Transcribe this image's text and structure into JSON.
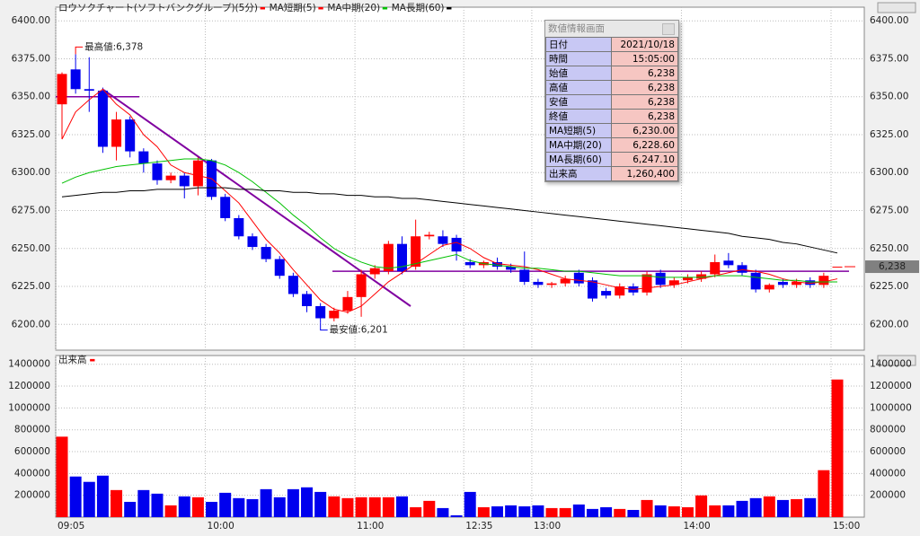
{
  "chart_data": [
    {
      "type": "candlestick",
      "title": "ロウソクチャート(ソフトバンクグループ)(5分)",
      "up_color": "#ff0000",
      "down_color": "#0000ee",
      "open": [
        6345,
        6368,
        6355,
        6354,
        6317,
        6335,
        6314,
        6306,
        6295,
        6298,
        6291,
        6308,
        6284,
        6270,
        6258,
        6251,
        6243,
        6232,
        6220,
        6212,
        6204,
        6209,
        6218,
        6233,
        6235,
        6253,
        6238,
        6258,
        6258,
        6257,
        6241,
        6239,
        6241,
        6238,
        6236,
        6228,
        6226,
        6227,
        6234,
        6229,
        6222,
        6219,
        6225,
        6221,
        6234,
        6226,
        6229,
        6230,
        6233,
        6242,
        6239,
        6234,
        6223,
        6228,
        6226,
        6229,
        6226,
        6238
      ],
      "high": [
        6366,
        6378,
        6376,
        6356,
        6340,
        6337,
        6316,
        6308,
        6300,
        6300,
        6310,
        6309,
        6286,
        6272,
        6260,
        6253,
        6245,
        6234,
        6222,
        6214,
        6211,
        6222,
        6236,
        6239,
        6255,
        6258,
        6269,
        6261,
        6262,
        6259,
        6243,
        6242,
        6244,
        6240,
        6248,
        6230,
        6228,
        6232,
        6236,
        6231,
        6224,
        6227,
        6227,
        6235,
        6236,
        6231,
        6233,
        6235,
        6246,
        6247,
        6241,
        6236,
        6227,
        6230,
        6230,
        6231,
        6234,
        6238
      ],
      "low": [
        6322,
        6352,
        6340,
        6313,
        6308,
        6310,
        6300,
        6292,
        6293,
        6283,
        6285,
        6282,
        6268,
        6256,
        6249,
        6241,
        6230,
        6218,
        6208,
        6201,
        6202,
        6207,
        6205,
        6230,
        6233,
        6233,
        6236,
        6256,
        6251,
        6242,
        6237,
        6237,
        6236,
        6234,
        6226,
        6224,
        6224,
        6225,
        6225,
        6215,
        6217,
        6217,
        6219,
        6219,
        6224,
        6224,
        6227,
        6228,
        6231,
        6237,
        6232,
        6221,
        6221,
        6224,
        6224,
        6224,
        6224,
        6238
      ],
      "close": [
        6365,
        6355,
        6354,
        6317,
        6335,
        6314,
        6306,
        6295,
        6298,
        6291,
        6308,
        6284,
        6270,
        6258,
        6251,
        6243,
        6232,
        6220,
        6212,
        6204,
        6209,
        6218,
        6233,
        6237,
        6253,
        6235,
        6258,
        6259,
        6253,
        6248,
        6239,
        6241,
        6238,
        6236,
        6228,
        6226,
        6227,
        6230,
        6227,
        6217,
        6219,
        6225,
        6221,
        6233,
        6226,
        6229,
        6231,
        6233,
        6241,
        6239,
        6234,
        6223,
        6226,
        6226,
        6228,
        6226,
        6232,
        6238
      ],
      "series": [
        {
          "name": "MA短期(5)",
          "color": "#ff0000",
          "values": [
            6322,
            6340,
            6348,
            6355,
            6345,
            6338,
            6325,
            6317,
            6305,
            6300,
            6298,
            6296,
            6288,
            6280,
            6268,
            6256,
            6247,
            6236,
            6226,
            6216,
            6210,
            6208,
            6212,
            6220,
            6228,
            6234,
            6240,
            6246,
            6252,
            6254,
            6250,
            6244,
            6240,
            6239,
            6238,
            6236,
            6233,
            6230,
            6229,
            6228,
            6226,
            6224,
            6223,
            6224,
            6225,
            6226,
            6228,
            6230,
            6232,
            6234,
            6236,
            6235,
            6233,
            6230,
            6228,
            6227,
            6228,
            6230
          ]
        },
        {
          "name": "MA中期(20)",
          "color": "#00c000",
          "values": [
            6293,
            6297,
            6300,
            6302,
            6304,
            6305,
            6306,
            6307,
            6308,
            6309,
            6309,
            6308,
            6305,
            6300,
            6294,
            6287,
            6280,
            6272,
            6265,
            6257,
            6250,
            6245,
            6241,
            6238,
            6237,
            6238,
            6240,
            6242,
            6244,
            6246,
            6242,
            6240,
            6239,
            6238,
            6237,
            6237,
            6236,
            6235,
            6235,
            6234,
            6233,
            6232,
            6232,
            6232,
            6231,
            6231,
            6231,
            6231,
            6232,
            6232,
            6232,
            6231,
            6230,
            6229,
            6229,
            6228,
            6228,
            6228
          ]
        },
        {
          "name": "MA長期(60)",
          "color": "#000000",
          "values": [
            6284,
            6285,
            6286,
            6287,
            6287,
            6288,
            6288,
            6289,
            6289,
            6289,
            6290,
            6290,
            6290,
            6289,
            6289,
            6288,
            6288,
            6287,
            6287,
            6286,
            6286,
            6285,
            6285,
            6284,
            6284,
            6283,
            6283,
            6282,
            6281,
            6280,
            6279,
            6278,
            6277,
            6276,
            6275,
            6274,
            6273,
            6272,
            6271,
            6270,
            6269,
            6268,
            6267,
            6266,
            6265,
            6264,
            6263,
            6262,
            6261,
            6260,
            6258,
            6257,
            6256,
            6254,
            6253,
            6251,
            6249,
            6247
          ]
        }
      ],
      "annotations": [
        {
          "text": "最高値:6,378",
          "value": 6378,
          "at": "high"
        },
        {
          "text": "最安値:6,201",
          "value": 6201,
          "at": "low"
        }
      ],
      "last_label": {
        "value": 6238,
        "label": "6,238"
      },
      "ylim": [
        6183,
        6409
      ],
      "yticks": [
        {
          "value": 6200,
          "label": "6200.00"
        },
        {
          "value": 6225,
          "label": "6225.00"
        },
        {
          "value": 6250,
          "label": "6250.00"
        },
        {
          "value": 6275,
          "label": "6275.00"
        },
        {
          "value": 6300,
          "label": "6300.00"
        },
        {
          "value": 6325,
          "label": "6325.00"
        },
        {
          "value": 6350,
          "label": "6350.00"
        },
        {
          "value": 6375,
          "label": "6375.00"
        },
        {
          "value": 6400,
          "label": "6400.00"
        }
      ],
      "grid": true
    },
    {
      "type": "bar",
      "title": "出来高",
      "color": "#ff0000",
      "categories": [
        "09:05",
        null,
        null,
        null,
        null,
        null,
        null,
        null,
        null,
        null,
        null,
        "10:00",
        null,
        null,
        null,
        null,
        null,
        null,
        null,
        null,
        null,
        null,
        "11:00",
        null,
        null,
        null,
        null,
        null,
        null,
        null,
        "12:35",
        null,
        null,
        null,
        null,
        "13:00",
        null,
        null,
        null,
        null,
        null,
        null,
        null,
        null,
        null,
        null,
        "14:00",
        null,
        null,
        null,
        null,
        null,
        null,
        null,
        null,
        null,
        null,
        "15:00"
      ],
      "values": [
        737000,
        372000,
        323000,
        380000,
        248000,
        140000,
        248000,
        215000,
        108000,
        190000,
        182000,
        140000,
        223000,
        174000,
        165000,
        256000,
        182000,
        256000,
        273000,
        231000,
        190000,
        174000,
        182000,
        182000,
        182000,
        190000,
        91000,
        149000,
        83000,
        17000,
        231000,
        91000,
        99000,
        108000,
        99000,
        108000,
        83000,
        83000,
        116000,
        75000,
        91000,
        75000,
        66000,
        157000,
        108000,
        99000,
        91000,
        199000,
        108000,
        108000,
        149000,
        174000,
        190000,
        157000,
        165000,
        174000,
        430000,
        1260400
      ],
      "ylim": [
        0,
        1480000
      ],
      "yticks": [
        200000,
        400000,
        600000,
        800000,
        1000000,
        1200000,
        1400000
      ],
      "grid": true
    }
  ],
  "info_panel": {
    "title": "数値情報画面",
    "rows": [
      [
        "日付",
        "2021/10/18"
      ],
      [
        "時間",
        "15:05:00"
      ],
      [
        "始値",
        "6,238"
      ],
      [
        "高値",
        "6,238"
      ],
      [
        "安値",
        "6,238"
      ],
      [
        "終値",
        "6,238"
      ],
      [
        "MA短期(5)",
        "6,230.00"
      ],
      [
        "MA中期(20)",
        "6,228.60"
      ],
      [
        "MA長期(60)",
        "6,247.10"
      ],
      [
        "出来高",
        "1,260,400"
      ]
    ]
  }
}
